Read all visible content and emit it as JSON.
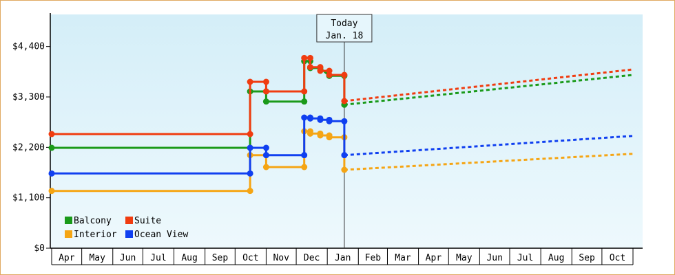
{
  "chart_data": {
    "type": "line",
    "title": "",
    "xlabel": "",
    "ylabel": "",
    "y_ticks": [
      "$0",
      "$1,100",
      "$2,200",
      "$3,300",
      "$4,400"
    ],
    "ylim": [
      0,
      5100
    ],
    "months": [
      "Apr",
      "May",
      "Jun",
      "Jul",
      "Aug",
      "Sep",
      "Oct",
      "Nov",
      "Dec",
      "Jan",
      "Feb",
      "Mar",
      "Apr",
      "May",
      "Jun",
      "Jul",
      "Aug",
      "Sep",
      "Oct"
    ],
    "x_range": [
      "2023-04-01",
      "2024-11-01"
    ],
    "today": {
      "line1": "Today",
      "line2": "Jan. 18",
      "date": "2024-01-18"
    },
    "colors": {
      "plot_bg_top": "#d4eef8",
      "plot_bg_bottom": "#eef9fd",
      "frame_border": "#e0a860"
    },
    "legend": {
      "position": "bottom-left",
      "items": [
        {
          "label": "Balcony",
          "color": "#1a9a1a"
        },
        {
          "label": "Suite",
          "color": "#f03c10"
        },
        {
          "label": "Interior",
          "color": "#f5a514"
        },
        {
          "label": "Ocean View",
          "color": "#1040f0"
        }
      ]
    },
    "series": [
      {
        "name": "Balcony",
        "color": "#1a9a1a",
        "points": [
          [
            "2023-04-01",
            2190
          ],
          [
            "2023-10-16",
            2190
          ],
          [
            "2023-10-16",
            3420
          ],
          [
            "2023-11-01",
            3420
          ],
          [
            "2023-11-01",
            3200
          ],
          [
            "2023-12-09",
            3200
          ],
          [
            "2023-12-09",
            4080
          ],
          [
            "2023-12-15",
            4080
          ],
          [
            "2023-12-15",
            3930
          ],
          [
            "2023-12-25",
            3930
          ],
          [
            "2024-01-03",
            3760
          ],
          [
            "2024-01-18",
            3760
          ],
          [
            "2024-01-18",
            3130
          ]
        ],
        "forecast": [
          [
            "2024-01-18",
            3130
          ],
          [
            "2024-11-01",
            3780
          ]
        ]
      },
      {
        "name": "Suite",
        "color": "#f03c10",
        "points": [
          [
            "2023-04-01",
            2490
          ],
          [
            "2023-10-16",
            2490
          ],
          [
            "2023-10-16",
            3630
          ],
          [
            "2023-11-01",
            3630
          ],
          [
            "2023-11-01",
            3420
          ],
          [
            "2023-12-09",
            3420
          ],
          [
            "2023-12-09",
            4150
          ],
          [
            "2023-12-15",
            4150
          ],
          [
            "2023-12-15",
            3950
          ],
          [
            "2023-12-25",
            3950
          ],
          [
            "2023-12-25",
            3870
          ],
          [
            "2024-01-03",
            3870
          ],
          [
            "2024-01-03",
            3780
          ],
          [
            "2024-01-18",
            3780
          ],
          [
            "2024-01-18",
            3210
          ]
        ],
        "forecast": [
          [
            "2024-01-18",
            3210
          ],
          [
            "2024-11-01",
            3900
          ]
        ]
      },
      {
        "name": "Interior",
        "color": "#f5a514",
        "points": [
          [
            "2023-04-01",
            1250
          ],
          [
            "2023-10-16",
            1250
          ],
          [
            "2023-10-16",
            2030
          ],
          [
            "2023-11-01",
            2030
          ],
          [
            "2023-11-01",
            1770
          ],
          [
            "2023-12-09",
            1770
          ],
          [
            "2023-12-09",
            2550
          ],
          [
            "2023-12-15",
            2550
          ],
          [
            "2023-12-15",
            2500
          ],
          [
            "2023-12-25",
            2500
          ],
          [
            "2023-12-25",
            2460
          ],
          [
            "2024-01-03",
            2460
          ],
          [
            "2024-01-03",
            2420
          ],
          [
            "2024-01-18",
            2420
          ],
          [
            "2024-01-18",
            1710
          ]
        ],
        "forecast": [
          [
            "2024-01-18",
            1710
          ],
          [
            "2024-11-01",
            2060
          ]
        ]
      },
      {
        "name": "Ocean View",
        "color": "#1040f0",
        "points": [
          [
            "2023-04-01",
            1630
          ],
          [
            "2023-10-16",
            1630
          ],
          [
            "2023-10-16",
            2190
          ],
          [
            "2023-11-01",
            2190
          ],
          [
            "2023-11-01",
            2030
          ],
          [
            "2023-12-09",
            2030
          ],
          [
            "2023-12-09",
            2850
          ],
          [
            "2023-12-15",
            2850
          ],
          [
            "2023-12-15",
            2830
          ],
          [
            "2023-12-25",
            2830
          ],
          [
            "2023-12-25",
            2800
          ],
          [
            "2024-01-03",
            2800
          ],
          [
            "2024-01-03",
            2770
          ],
          [
            "2024-01-18",
            2770
          ],
          [
            "2024-01-18",
            2030
          ]
        ],
        "forecast": [
          [
            "2024-01-18",
            2030
          ],
          [
            "2024-11-01",
            2450
          ]
        ]
      }
    ]
  }
}
